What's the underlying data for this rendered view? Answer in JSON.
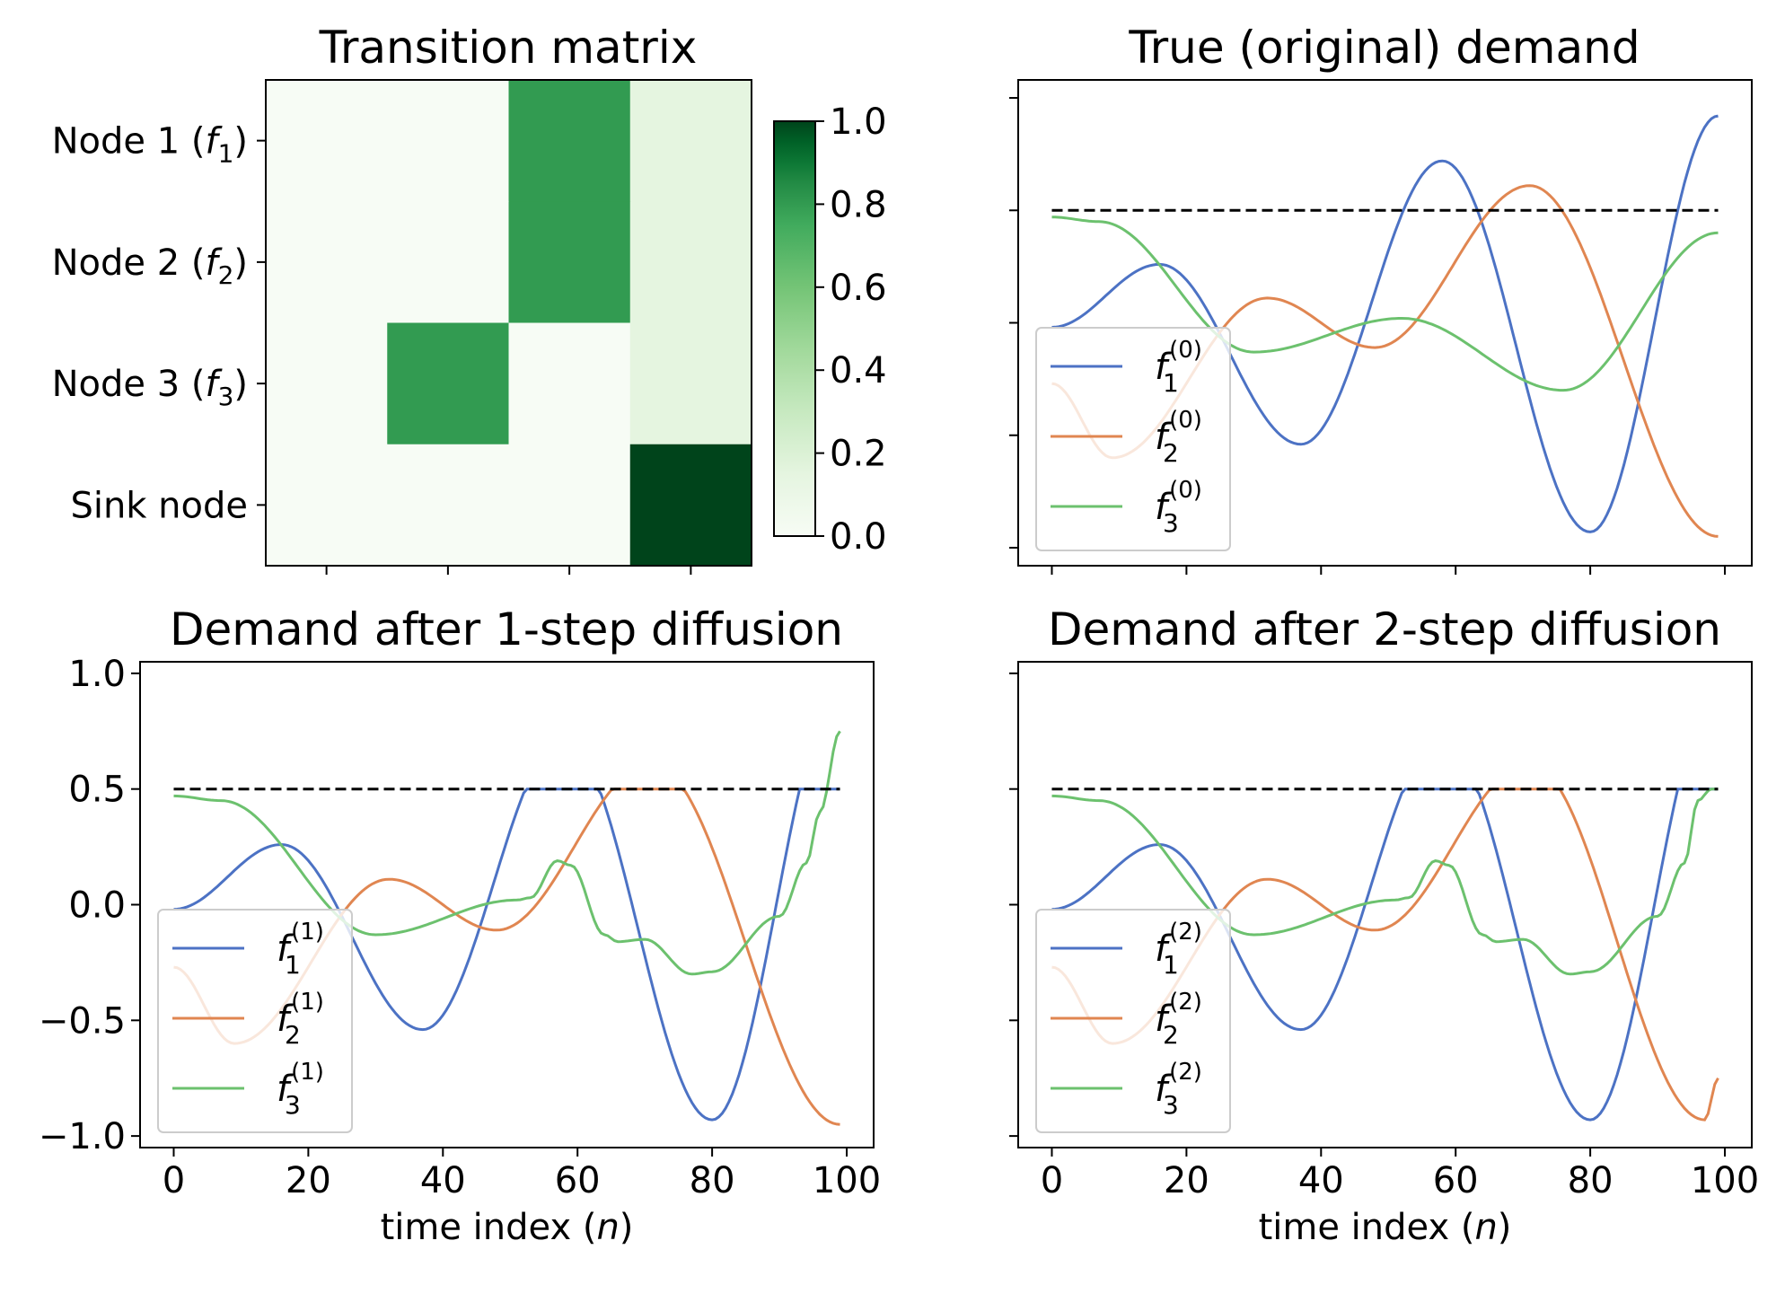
{
  "chart_data": [
    {
      "type": "heatmap",
      "title": "Transition matrix",
      "row_labels": [
        {
          "main": "Node 1 (",
          "var": "f",
          "sub": "1",
          "tail": ")"
        },
        {
          "main": "Node 2 (",
          "var": "f",
          "sub": "2",
          "tail": ")"
        },
        {
          "main": "Node 3 (",
          "var": "f",
          "sub": "3",
          "tail": ")"
        },
        {
          "main": "Sink node",
          "var": "",
          "sub": "",
          "tail": ""
        }
      ],
      "matrix": [
        [
          0.0,
          0.0,
          0.8,
          0.15
        ],
        [
          0.0,
          0.0,
          0.8,
          0.15
        ],
        [
          0.0,
          0.8,
          0.0,
          0.15
        ],
        [
          0.0,
          0.0,
          0.0,
          1.0
        ]
      ],
      "colormap": "Greens",
      "colorbar": {
        "vmin": 0.0,
        "vmax": 1.0,
        "ticks": [
          "0.0",
          "0.2",
          "0.4",
          "0.6",
          "0.8",
          "1.0"
        ]
      }
    },
    {
      "type": "line",
      "title": "True (original) demand",
      "xlabel": "",
      "ylabel": "",
      "xlim": [
        -5,
        104
      ],
      "ylim": [
        -1.08,
        1.08
      ],
      "xtick_labels_visible": false,
      "ytick_labels_visible": false,
      "threshold": 0.5,
      "legend_location": "lower-left",
      "series": [
        {
          "name": "f",
          "sup": "(0)",
          "sub": "1",
          "color": "#4c72c4",
          "kind": "f1_true"
        },
        {
          "name": "f",
          "sup": "(0)",
          "sub": "2",
          "color": "#e08651",
          "kind": "f2_true"
        },
        {
          "name": "f",
          "sup": "(0)",
          "sub": "3",
          "color": "#6cc16e",
          "kind": "f3_true"
        }
      ]
    },
    {
      "type": "line",
      "title": "Demand after 1-step diffusion",
      "xlabel": "time index (n)",
      "xlabel_parts": {
        "pre": "time index (",
        "var": "n",
        "post": ")"
      },
      "xlim": [
        -5,
        104
      ],
      "ylim": [
        -1.05,
        1.05
      ],
      "xticks": [
        0,
        20,
        40,
        60,
        80,
        100
      ],
      "yticks": [
        {
          "v": -1.0,
          "label": "−1.0"
        },
        {
          "v": -0.5,
          "label": "−0.5"
        },
        {
          "v": 0.0,
          "label": "0.0"
        },
        {
          "v": 0.5,
          "label": "0.5"
        },
        {
          "v": 1.0,
          "label": "1.0"
        }
      ],
      "ytick_labels_visible": true,
      "threshold": 0.5,
      "legend_location": "lower-left",
      "series": [
        {
          "name": "f",
          "sup": "(1)",
          "sub": "1",
          "color": "#4c72c4",
          "kind": "f1_clip",
          "end": 0.5
        },
        {
          "name": "f",
          "sup": "(1)",
          "sub": "2",
          "color": "#e08651",
          "kind": "f2_clip",
          "end": -0.95
        },
        {
          "name": "f",
          "sup": "(1)",
          "sub": "3",
          "color": "#6cc16e",
          "kind": "f3_diff",
          "end": 0.75
        }
      ]
    },
    {
      "type": "line",
      "title": "Demand after 2-step diffusion",
      "xlabel": "time index (n)",
      "xlabel_parts": {
        "pre": "time index (",
        "var": "n",
        "post": ")"
      },
      "xlim": [
        -5,
        104
      ],
      "ylim": [
        -1.05,
        1.05
      ],
      "xticks": [
        0,
        20,
        40,
        60,
        80,
        100
      ],
      "ytick_labels_visible": false,
      "threshold": 0.5,
      "legend_location": "lower-left",
      "series": [
        {
          "name": "f",
          "sup": "(2)",
          "sub": "1",
          "color": "#4c72c4",
          "kind": "f1_clip",
          "end": 0.5
        },
        {
          "name": "f",
          "sup": "(2)",
          "sub": "2",
          "color": "#e08651",
          "kind": "f2_clip2",
          "end": -0.75
        },
        {
          "name": "f",
          "sup": "(2)",
          "sub": "3",
          "color": "#6cc16e",
          "kind": "f3_diff2",
          "end": 0.5
        }
      ]
    }
  ]
}
